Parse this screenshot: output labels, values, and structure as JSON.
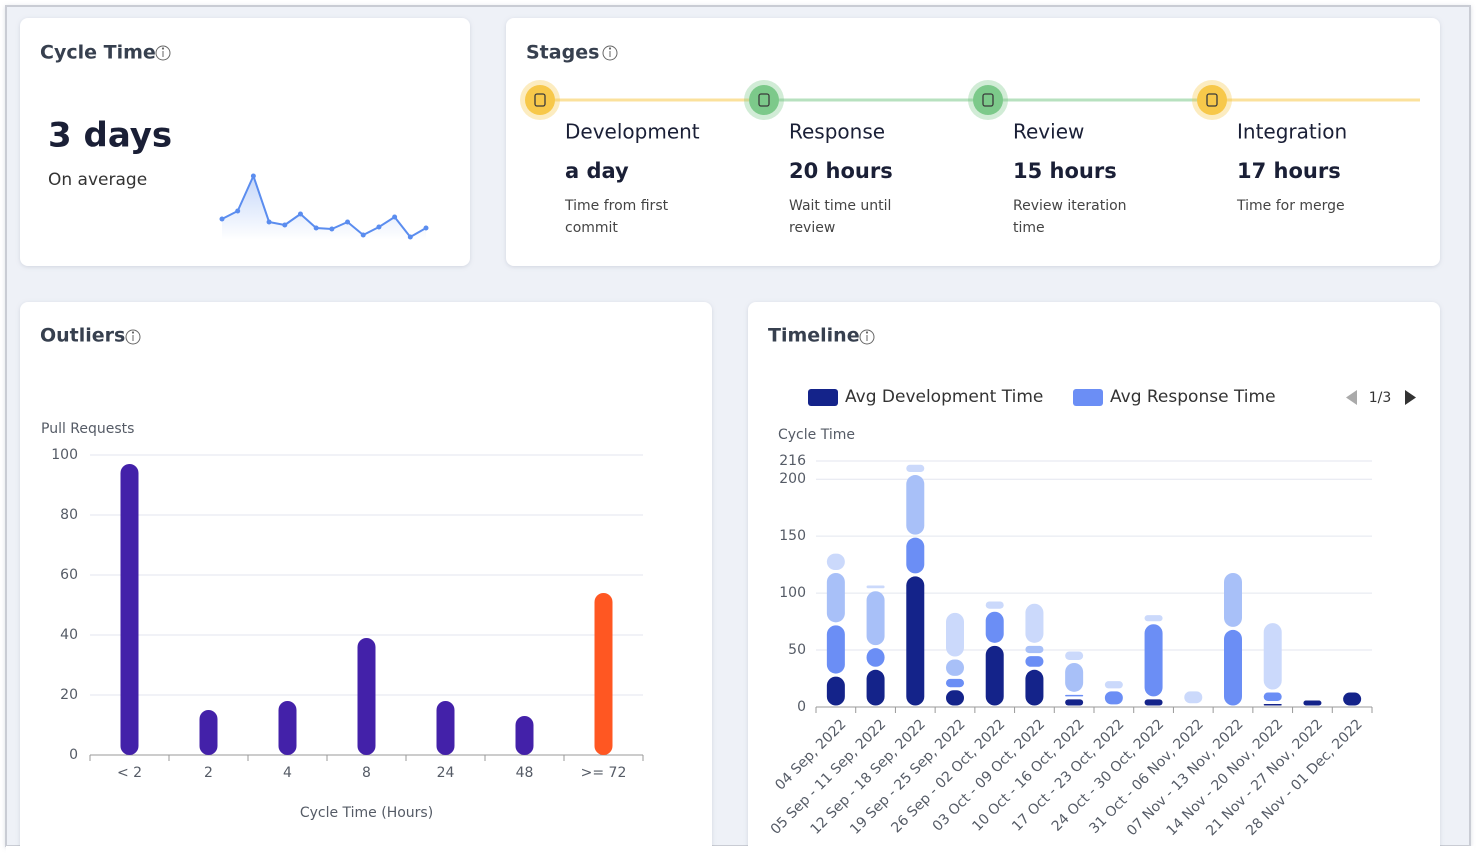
{
  "cycle_time": {
    "title": "Cycle Time",
    "value": "3 days",
    "caption": "On average",
    "sparkline": {
      "type": "line",
      "color": "#5b8def",
      "values": [
        21,
        29,
        64,
        18,
        15,
        26,
        12,
        11,
        18,
        5,
        13,
        23,
        3,
        12
      ]
    }
  },
  "stages": {
    "title": "Stages",
    "items": [
      {
        "name": "Development",
        "duration": "a day",
        "description": [
          "Time from first",
          "commit"
        ],
        "color": "#f7c84a"
      },
      {
        "name": "Response",
        "duration": "20 hours",
        "description": [
          "Wait time until",
          "review"
        ],
        "color": "#7cc98a"
      },
      {
        "name": "Review",
        "duration": "15 hours",
        "description": [
          "Review iteration",
          "time"
        ],
        "color": "#7cc98a"
      },
      {
        "name": "Integration",
        "duration": "17 hours",
        "description": [
          "Time for merge"
        ],
        "color": "#f7c84a"
      }
    ]
  },
  "chart_data": [
    {
      "type": "bar",
      "title": "Outliers",
      "y_label": "Pull Requests",
      "x_label": "Cycle Time (Hours)",
      "categories": [
        "< 2",
        "2",
        "4",
        "8",
        "24",
        "48",
        ">= 72"
      ],
      "values": [
        97,
        15,
        18,
        39,
        18,
        13,
        54
      ],
      "colors": [
        "#4321a9",
        "#4321a9",
        "#4321a9",
        "#4321a9",
        "#4321a9",
        "#4321a9",
        "#ff5722"
      ],
      "ylim": [
        0,
        100
      ],
      "yticks": [
        0,
        20,
        40,
        60,
        80,
        100
      ],
      "grid": true
    },
    {
      "type": "stacked_bar",
      "title": "Timeline",
      "y_label": "Cycle Time",
      "pagination": "1/3",
      "categories": [
        "04 Sep, 2022",
        "05 Sep - 11 Sep, 2022",
        "12 Sep - 18 Sep, 2022",
        "19 Sep - 25 Sep, 2022",
        "26 Sep - 02 Oct, 2022",
        "03 Oct - 09 Oct, 2022",
        "10 Oct - 16 Oct, 2022",
        "17 Oct - 23 Oct, 2022",
        "24 Oct - 30 Oct, 2022",
        "31 Oct - 06 Nov, 2022",
        "07 Nov - 13 Nov, 2022",
        "14 Nov - 20 Nov, 2022",
        "21 Nov - 27 Nov, 2022",
        "28 Nov - 01 Dec, 2022"
      ],
      "series": [
        {
          "name": "Avg Development Time",
          "color": "#14238a",
          "values": [
            28,
            34,
            116,
            16,
            55,
            34,
            8,
            1,
            8,
            1,
            0,
            4,
            7,
            14
          ]
        },
        {
          "name": "Avg Response Time",
          "color": "#6b8ef5",
          "values": [
            45,
            19,
            34,
            10,
            30,
            12,
            4,
            14,
            66,
            1,
            69,
            10,
            0,
            0
          ]
        },
        {
          "color": "#a8c0f8",
          "values": [
            46,
            50,
            55,
            17,
            0,
            9,
            28,
            0,
            0,
            0,
            50,
            0,
            0,
            0
          ]
        },
        {
          "color": "#cbd9fb",
          "values": [
            17,
            5,
            9,
            41,
            9,
            37,
            10,
            9,
            8,
            13,
            0,
            61,
            0,
            0
          ]
        }
      ],
      "ylim": [
        0,
        216
      ],
      "yticks": [
        0,
        50,
        100,
        150,
        200,
        216
      ],
      "grid": true
    }
  ]
}
